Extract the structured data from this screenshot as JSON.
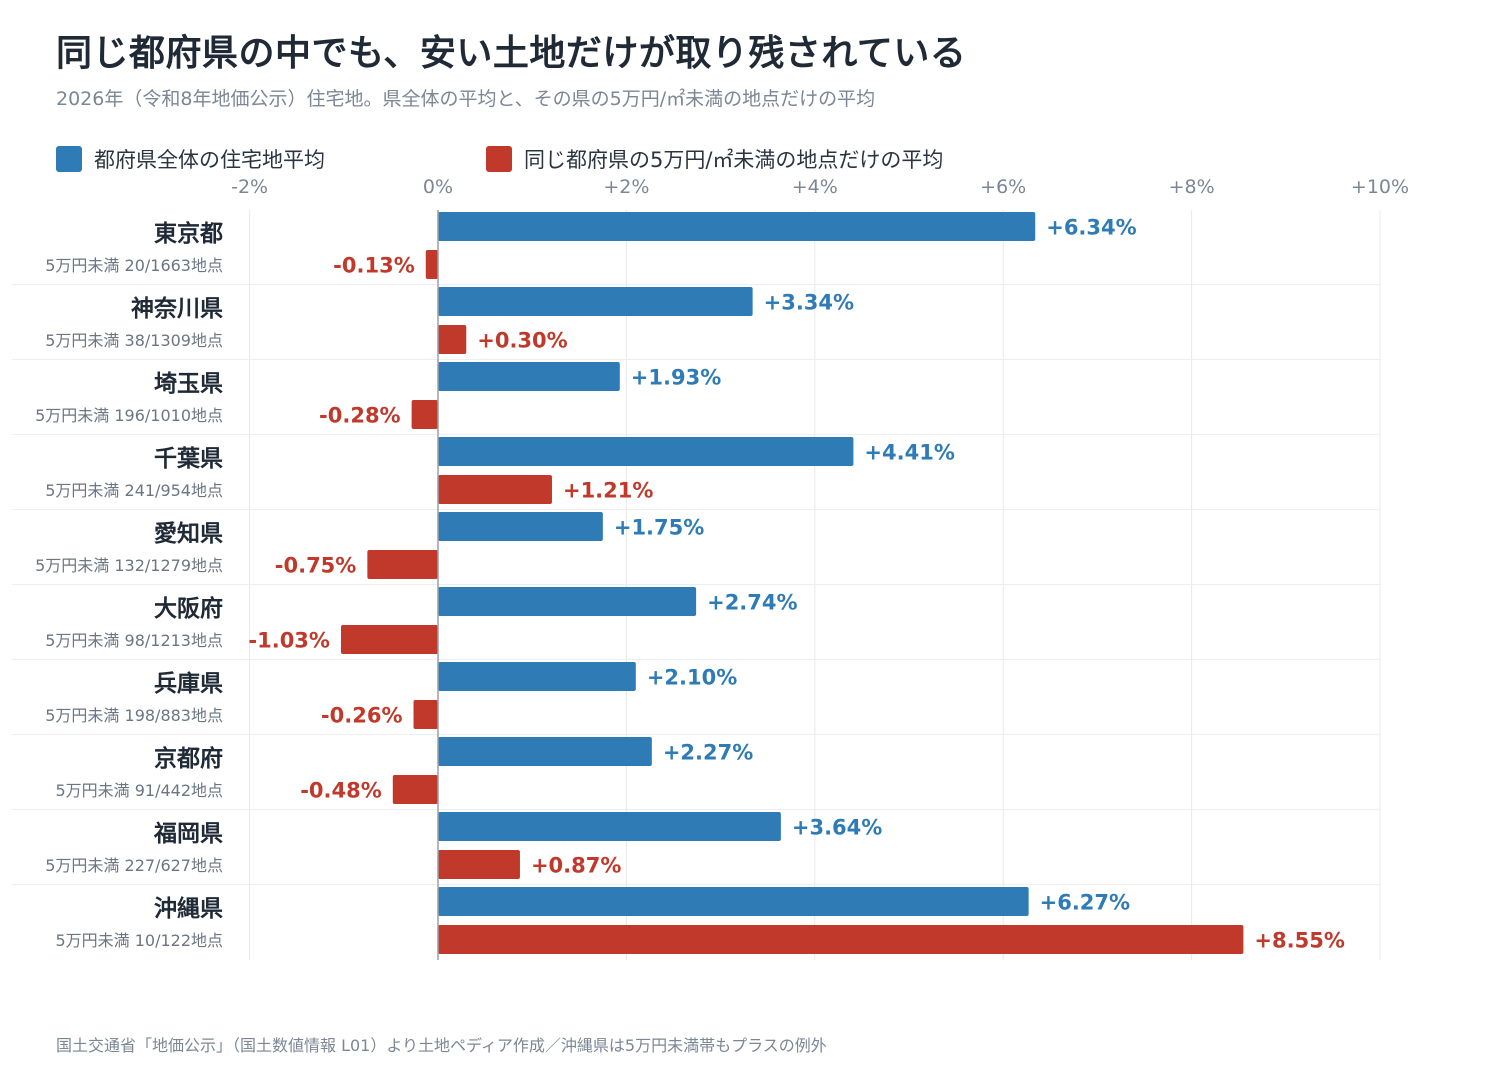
{
  "title": "同じ都府県の中でも、安い土地だけが取り残されている",
  "subtitle": "2026年（令和8年地価公示）住宅地。県全体の平均と、その県の5万円/㎡未満の地点だけの平均",
  "source": "国土交通省「地価公示」（国土数値情報 L01）より土地ペディア作成／沖縄県は5万円未満帯もプラスの例外",
  "colors": {
    "all": "#2e7bb6",
    "cheap": "#c0392b",
    "grid": "#e6e8eb",
    "zero": "#9aa0a6",
    "tick": "#7b8794"
  },
  "chart_data": {
    "type": "bar",
    "orientation": "horizontal",
    "xlim": [
      -2,
      10
    ],
    "xticks": [
      {
        "value": -2,
        "label": "-2%"
      },
      {
        "value": 0,
        "label": "0%"
      },
      {
        "value": 2,
        "label": "+2%"
      },
      {
        "value": 4,
        "label": "+4%"
      },
      {
        "value": 6,
        "label": "+6%"
      },
      {
        "value": 8,
        "label": "+8%"
      },
      {
        "value": 10,
        "label": "+10%"
      }
    ],
    "legend_position": "top-left",
    "grid": true,
    "series": [
      {
        "name": "都府県全体の住宅地平均",
        "color": "#2e7bb6"
      },
      {
        "name": "同じ都府県の5万円/㎡未満の地点だけの平均",
        "color": "#c0392b"
      }
    ],
    "categories": [
      {
        "name": "東京都",
        "note": "5万円未満 20/1663地点",
        "all": 6.34,
        "all_label": "+6.34%",
        "cheap": -0.13,
        "cheap_label": "-0.13%"
      },
      {
        "name": "神奈川県",
        "note": "5万円未満 38/1309地点",
        "all": 3.34,
        "all_label": "+3.34%",
        "cheap": 0.3,
        "cheap_label": "+0.30%"
      },
      {
        "name": "埼玉県",
        "note": "5万円未満 196/1010地点",
        "all": 1.93,
        "all_label": "+1.93%",
        "cheap": -0.28,
        "cheap_label": "-0.28%"
      },
      {
        "name": "千葉県",
        "note": "5万円未満 241/954地点",
        "all": 4.41,
        "all_label": "+4.41%",
        "cheap": 1.21,
        "cheap_label": "+1.21%"
      },
      {
        "name": "愛知県",
        "note": "5万円未満 132/1279地点",
        "all": 1.75,
        "all_label": "+1.75%",
        "cheap": -0.75,
        "cheap_label": "-0.75%"
      },
      {
        "name": "大阪府",
        "note": "5万円未満 98/1213地点",
        "all": 2.74,
        "all_label": "+2.74%",
        "cheap": -1.03,
        "cheap_label": "-1.03%"
      },
      {
        "name": "兵庫県",
        "note": "5万円未満 198/883地点",
        "all": 2.1,
        "all_label": "+2.10%",
        "cheap": -0.26,
        "cheap_label": "-0.26%"
      },
      {
        "name": "京都府",
        "note": "5万円未満 91/442地点",
        "all": 2.27,
        "all_label": "+2.27%",
        "cheap": -0.48,
        "cheap_label": "-0.48%"
      },
      {
        "name": "福岡県",
        "note": "5万円未満 227/627地点",
        "all": 3.64,
        "all_label": "+3.64%",
        "cheap": 0.87,
        "cheap_label": "+0.87%"
      },
      {
        "name": "沖縄県",
        "note": "5万円未満 10/122地点",
        "all": 6.27,
        "all_label": "+6.27%",
        "cheap": 8.55,
        "cheap_label": "+8.55%"
      }
    ]
  }
}
